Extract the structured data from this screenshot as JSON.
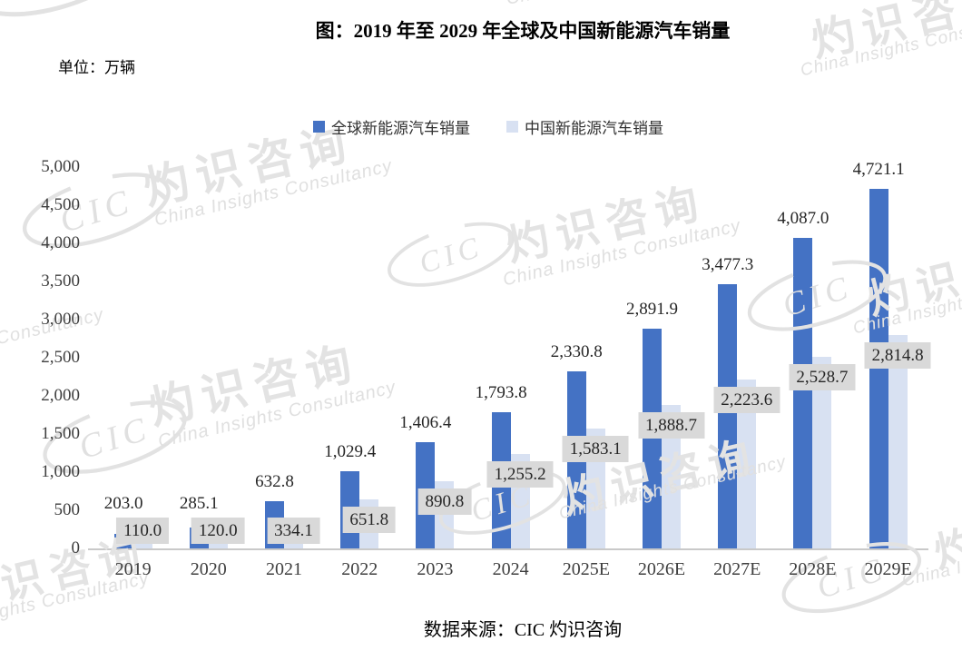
{
  "title": "图：2019 年至 2029 年全球及中国新能源汽车销量",
  "unit_label": "单位：万辆",
  "source": "数据来源：CIC 灼识咨询",
  "legend": [
    {
      "label": "全球新能源汽车销量",
      "color": "#4472C4"
    },
    {
      "label": "中国新能源汽车销量",
      "color": "#D8E1F2"
    }
  ],
  "chart_data": {
    "type": "bar",
    "title": "图：2019 年至 2029 年全球及中国新能源汽车销量",
    "ylabel": "万辆",
    "xlabel": "",
    "grid": false,
    "legend_position": "top",
    "categories": [
      "2019",
      "2020",
      "2021",
      "2022",
      "2023",
      "2024",
      "2025E",
      "2026E",
      "2027E",
      "2028E",
      "2029E"
    ],
    "series": [
      {
        "name": "全球新能源汽车销量",
        "color": "#4472C4",
        "values": [
          203.0,
          285.1,
          632.8,
          1029.4,
          1406.4,
          1793.8,
          2330.8,
          2891.9,
          3477.3,
          4087.0,
          4721.1
        ],
        "labels": [
          "203.0",
          "285.1",
          "632.8",
          "1,029.4",
          "1,406.4",
          "1,793.8",
          "2,330.8",
          "2,891.9",
          "3,477.3",
          "4,087.0",
          "4,721.1"
        ]
      },
      {
        "name": "中国新能源汽车销量",
        "color": "#D8E1F2",
        "values": [
          110.0,
          120.0,
          334.1,
          651.8,
          890.8,
          1255.2,
          1583.1,
          1888.7,
          2223.6,
          2528.7,
          2814.8
        ],
        "labels": [
          "110.0",
          "120.0",
          "334.1",
          "651.8",
          "890.8",
          "1,255.2",
          "1,583.1",
          "1,888.7",
          "2,223.6",
          "2,528.7",
          "2,814.8"
        ],
        "label_bg": "#D9D9D9"
      }
    ],
    "y_axis": {
      "min": 0,
      "max": 5000,
      "step": 500,
      "tick_labels": [
        "0",
        "500",
        "1,000",
        "1,500",
        "2,000",
        "2,500",
        "3,000",
        "3,500",
        "4,000",
        "4,500",
        "5,000"
      ]
    }
  },
  "watermark": {
    "cic": "CIC",
    "zh": "灼识咨询",
    "en": "China Insights Consultancy"
  }
}
